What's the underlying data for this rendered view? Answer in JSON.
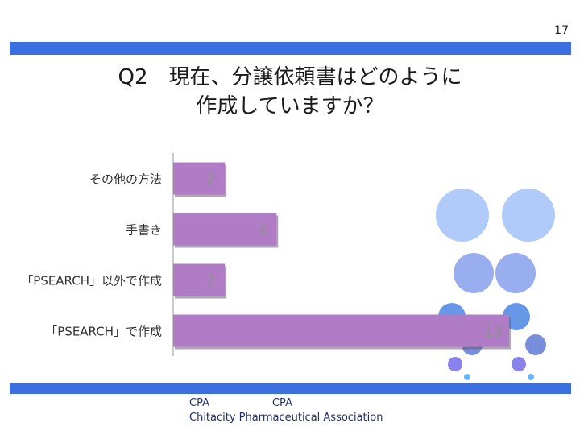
{
  "slide": {
    "page_number": "17",
    "title_line1": "Q2　現在、分譲依頼書はどのように",
    "title_line2": "作成していますか？",
    "footer_line1": "CPA　　　　　　CPA",
    "footer_line2": "Chitacity Pharmaceutical Association"
  },
  "chart_data": {
    "type": "bar",
    "orientation": "horizontal",
    "categories": [
      "その他の方法",
      "手書き",
      "「PSEARCH」以外で作成",
      "「PSEARCH」で作成"
    ],
    "values": [
      2,
      4,
      2,
      13
    ],
    "xlim": [
      0,
      13
    ],
    "grid": false,
    "legend": "none",
    "bar_color": "#b07cc6",
    "bar_shadow_color": "#6e5c78",
    "axis_color": "#b8b8b8"
  },
  "decor": {
    "circles": [
      {
        "color": "#a9c6f8"
      },
      {
        "color": "#a9c6f8"
      },
      {
        "color": "#8fa7ee"
      },
      {
        "color": "#8fa7ee"
      },
      {
        "color": "#5a8fe6"
      },
      {
        "color": "#5a8fe6"
      },
      {
        "color": "#6d84d8"
      },
      {
        "color": "#6d84d8"
      },
      {
        "color": "#7d78e8"
      },
      {
        "color": "#7d78e8"
      },
      {
        "color": "#5ab0f0"
      },
      {
        "color": "#5ab0f0"
      }
    ]
  }
}
